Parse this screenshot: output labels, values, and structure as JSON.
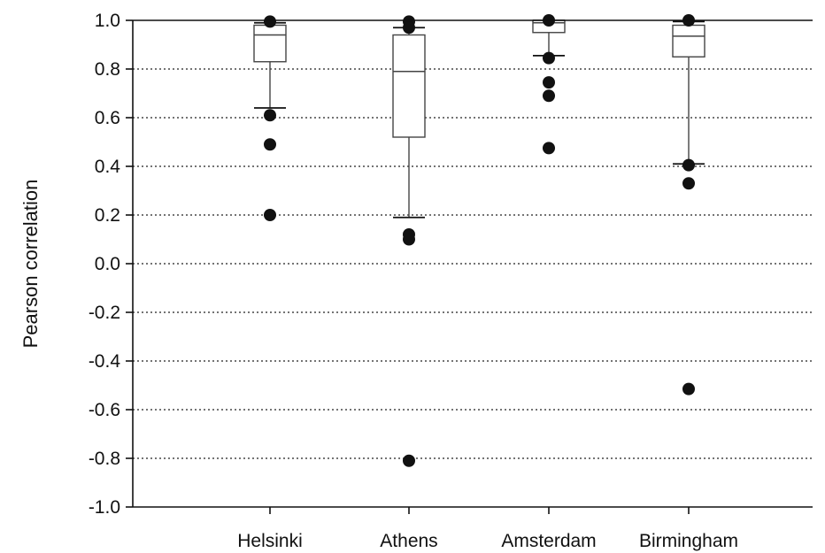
{
  "chart_data": {
    "type": "box",
    "title": "",
    "xlabel": "",
    "ylabel": "Pearson correlation",
    "ylim": [
      -1.0,
      1.0
    ],
    "yticks": [
      -1.0,
      -0.8,
      -0.6,
      -0.4,
      -0.2,
      0.0,
      0.2,
      0.4,
      0.6,
      0.8,
      1.0
    ],
    "ytick_labels": [
      "-1.0",
      "-0.8",
      "-0.6",
      "-0.4",
      "-0.2",
      "0.0",
      "0.2",
      "0.4",
      "0.6",
      "0.8",
      "1.0"
    ],
    "grid": "horizontal dotted",
    "categories": [
      "Helsinki",
      "Athens",
      "Amsterdam",
      "Birmingham"
    ],
    "boxes": [
      {
        "name": "Helsinki",
        "whisker_low": 0.64,
        "q1": 0.83,
        "median": 0.94,
        "q3": 0.98,
        "whisker_high": 0.99,
        "outliers": [
          0.995,
          0.61,
          0.49,
          0.2
        ]
      },
      {
        "name": "Athens",
        "whisker_low": 0.19,
        "q1": 0.52,
        "median": 0.79,
        "q3": 0.94,
        "whisker_high": 0.97,
        "outliers": [
          0.995,
          0.97,
          0.12,
          0.1,
          -0.81
        ]
      },
      {
        "name": "Amsterdam",
        "whisker_low": 0.855,
        "q1": 0.95,
        "median": 0.99,
        "q3": 1.0,
        "whisker_high": 1.0,
        "outliers": [
          1.0,
          0.845,
          0.745,
          0.69,
          0.475
        ]
      },
      {
        "name": "Birmingham",
        "whisker_low": 0.41,
        "q1": 0.85,
        "median": 0.935,
        "q3": 0.98,
        "whisker_high": 0.995,
        "outliers": [
          1.0,
          0.405,
          0.33,
          -0.515
        ]
      }
    ]
  }
}
